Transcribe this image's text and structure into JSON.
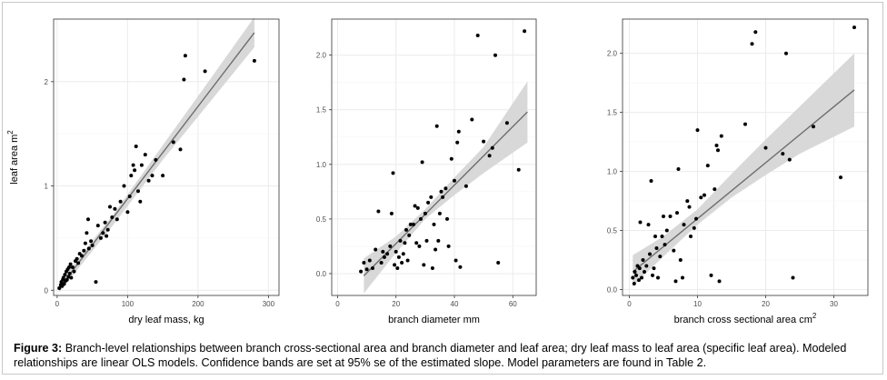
{
  "caption": {
    "label": "Figure 3:",
    "text": "Branch-level relationships between branch cross-sectional area and branch diameter and leaf area; dry leaf mass to leaf area (specific leaf area). Modeled relationships are linear OLS models. Confidence bands are set at 95% se of the estimated slope. Model parameters are found in Table 2."
  },
  "colors": {
    "points": "#000000",
    "fit_line": "#6e6e6e",
    "confidence_band": "#d6d6d6",
    "gridline": "#ebebeb",
    "panel_border": "#333333"
  },
  "chart_data": [
    {
      "type": "scatter",
      "title": "",
      "xlabel": "dry leaf mass, kg",
      "ylabel": "leaf area m",
      "ylabel_superscript": "2",
      "xlim": [
        -5,
        315
      ],
      "ylim": [
        -0.05,
        2.6
      ],
      "xticks": [
        0,
        100,
        200,
        300
      ],
      "yticks": [
        0,
        1,
        2
      ],
      "grid": true,
      "fit": {
        "method": "linear OLS",
        "x": [
          3,
          280
        ],
        "y": [
          0.02,
          2.47
        ]
      },
      "band": {
        "x": [
          3,
          80,
          150,
          220,
          280
        ],
        "lower": [
          -0.02,
          0.63,
          1.25,
          1.83,
          2.33
        ],
        "upper": [
          0.07,
          0.73,
          1.39,
          2.05,
          2.62
        ]
      },
      "points": [
        [
          3,
          0.02
        ],
        [
          5,
          0.05
        ],
        [
          6,
          0.08
        ],
        [
          7,
          0.04
        ],
        [
          8,
          0.1
        ],
        [
          9,
          0.12
        ],
        [
          10,
          0.06
        ],
        [
          11,
          0.15
        ],
        [
          12,
          0.09
        ],
        [
          13,
          0.18
        ],
        [
          14,
          0.1
        ],
        [
          15,
          0.2
        ],
        [
          16,
          0.13
        ],
        [
          17,
          0.22
        ],
        [
          18,
          0.16
        ],
        [
          19,
          0.25
        ],
        [
          20,
          0.12
        ],
        [
          22,
          0.22
        ],
        [
          24,
          0.18
        ],
        [
          26,
          0.28
        ],
        [
          28,
          0.3
        ],
        [
          30,
          0.26
        ],
        [
          32,
          0.35
        ],
        [
          35,
          0.33
        ],
        [
          38,
          0.38
        ],
        [
          40,
          0.45
        ],
        [
          42,
          0.55
        ],
        [
          44,
          0.68
        ],
        [
          45,
          0.4
        ],
        [
          48,
          0.47
        ],
        [
          50,
          0.43
        ],
        [
          55,
          0.08
        ],
        [
          58,
          0.62
        ],
        [
          62,
          0.5
        ],
        [
          65,
          0.55
        ],
        [
          68,
          0.65
        ],
        [
          70,
          0.52
        ],
        [
          72,
          0.58
        ],
        [
          75,
          0.8
        ],
        [
          78,
          0.7
        ],
        [
          82,
          0.78
        ],
        [
          85,
          0.68
        ],
        [
          90,
          0.85
        ],
        [
          95,
          1.0
        ],
        [
          100,
          0.75
        ],
        [
          103,
          0.9
        ],
        [
          105,
          1.1
        ],
        [
          108,
          1.2
        ],
        [
          110,
          1.15
        ],
        [
          112,
          1.38
        ],
        [
          115,
          0.95
        ],
        [
          118,
          0.85
        ],
        [
          120,
          1.2
        ],
        [
          125,
          1.3
        ],
        [
          130,
          1.05
        ],
        [
          135,
          1.1
        ],
        [
          140,
          1.25
        ],
        [
          150,
          1.1
        ],
        [
          165,
          1.42
        ],
        [
          175,
          1.35
        ],
        [
          180,
          2.02
        ],
        [
          182,
          2.25
        ],
        [
          210,
          2.1
        ],
        [
          280,
          2.2
        ]
      ]
    },
    {
      "type": "scatter",
      "title": "",
      "xlabel": "branch diameter mm",
      "ylabel": "",
      "xlim": [
        -2,
        68
      ],
      "ylim": [
        -0.2,
        2.33
      ],
      "xticks": [
        0,
        20,
        40,
        60
      ],
      "yticks": [
        0.0,
        0.5,
        1.0,
        1.5,
        2.0
      ],
      "grid": true,
      "fit": {
        "method": "linear OLS",
        "x": [
          9,
          65
        ],
        "y": [
          -0.02,
          1.48
        ]
      },
      "band": {
        "x": [
          9,
          20,
          30,
          40,
          50,
          65
        ],
        "lower": [
          -0.18,
          0.19,
          0.5,
          0.72,
          0.92,
          1.2
        ],
        "upper": [
          0.14,
          0.34,
          0.59,
          0.88,
          1.16,
          1.76
        ]
      },
      "points": [
        [
          8,
          0.02
        ],
        [
          9,
          0.1
        ],
        [
          10,
          0.04
        ],
        [
          11,
          0.12
        ],
        [
          12,
          0.05
        ],
        [
          13,
          0.22
        ],
        [
          14,
          0.57
        ],
        [
          15,
          0.1
        ],
        [
          15.5,
          0.2
        ],
        [
          16,
          0.15
        ],
        [
          17,
          0.18
        ],
        [
          18,
          0.25
        ],
        [
          18.5,
          0.55
        ],
        [
          19,
          0.92
        ],
        [
          19.5,
          0.08
        ],
        [
          20,
          0.2
        ],
        [
          20.5,
          0.05
        ],
        [
          21,
          0.15
        ],
        [
          21.5,
          0.3
        ],
        [
          22,
          0.1
        ],
        [
          22.5,
          0.18
        ],
        [
          23,
          0.28
        ],
        [
          23.5,
          0.4
        ],
        [
          24,
          0.12
        ],
        [
          24.5,
          0.35
        ],
        [
          25,
          0.45
        ],
        [
          26,
          0.45
        ],
        [
          26.5,
          0.62
        ],
        [
          27,
          0.28
        ],
        [
          27.5,
          0.6
        ],
        [
          28,
          0.25
        ],
        [
          28.5,
          0.5
        ],
        [
          29,
          1.02
        ],
        [
          29.5,
          0.08
        ],
        [
          30,
          0.55
        ],
        [
          30.5,
          0.3
        ],
        [
          31,
          0.65
        ],
        [
          32,
          0.7
        ],
        [
          32.5,
          0.05
        ],
        [
          33,
          0.45
        ],
        [
          33.5,
          0.22
        ],
        [
          34,
          1.35
        ],
        [
          34.5,
          0.3
        ],
        [
          35,
          0.55
        ],
        [
          35.5,
          0.75
        ],
        [
          36,
          0.7
        ],
        [
          37,
          0.78
        ],
        [
          37.5,
          0.5
        ],
        [
          38,
          0.25
        ],
        [
          39,
          1.05
        ],
        [
          40,
          0.85
        ],
        [
          40.5,
          0.12
        ],
        [
          41,
          1.2
        ],
        [
          41.5,
          1.3
        ],
        [
          42,
          0.06
        ],
        [
          44,
          0.8
        ],
        [
          46,
          1.41
        ],
        [
          48,
          2.18
        ],
        [
          50,
          1.21
        ],
        [
          52,
          1.08
        ],
        [
          53,
          1.15
        ],
        [
          54,
          2.0
        ],
        [
          55,
          0.1
        ],
        [
          58,
          1.38
        ],
        [
          62,
          0.95
        ],
        [
          64,
          2.22
        ]
      ]
    },
    {
      "type": "scatter",
      "title": "",
      "xlabel": "branch cross sectional area cm",
      "xlabel_superscript": "2",
      "ylabel": "",
      "xlim": [
        -1,
        35
      ],
      "ylim": [
        -0.05,
        2.29
      ],
      "xticks": [
        0,
        10,
        20,
        30
      ],
      "yticks": [
        0.0,
        0.5,
        1.0,
        1.5,
        2.0
      ],
      "grid": true,
      "fit": {
        "method": "linear OLS",
        "x": [
          0.5,
          33
        ],
        "y": [
          0.15,
          1.69
        ]
      },
      "band": {
        "x": [
          0.5,
          5,
          10,
          15,
          20,
          25,
          33
        ],
        "lower": [
          0.03,
          0.28,
          0.55,
          0.78,
          0.97,
          1.15,
          1.38
        ],
        "upper": [
          0.29,
          0.45,
          0.68,
          0.98,
          1.27,
          1.55,
          2.0
        ]
      },
      "points": [
        [
          0.5,
          0.1
        ],
        [
          0.7,
          0.05
        ],
        [
          0.8,
          0.15
        ],
        [
          1,
          0.12
        ],
        [
          1.2,
          0.2
        ],
        [
          1.4,
          0.08
        ],
        [
          1.5,
          0.18
        ],
        [
          1.6,
          0.57
        ],
        [
          1.8,
          0.1
        ],
        [
          2,
          0.25
        ],
        [
          2.2,
          0.15
        ],
        [
          2.5,
          0.2
        ],
        [
          2.8,
          0.55
        ],
        [
          3,
          0.3
        ],
        [
          3.2,
          0.92
        ],
        [
          3.4,
          0.12
        ],
        [
          3.6,
          0.18
        ],
        [
          3.8,
          0.45
        ],
        [
          4,
          0.35
        ],
        [
          4.2,
          0.1
        ],
        [
          4.5,
          0.28
        ],
        [
          4.8,
          0.45
        ],
        [
          5,
          0.62
        ],
        [
          5.2,
          0.38
        ],
        [
          5.5,
          0.5
        ],
        [
          6,
          0.62
        ],
        [
          6.5,
          0.33
        ],
        [
          6.8,
          0.07
        ],
        [
          7,
          0.65
        ],
        [
          7.2,
          1.02
        ],
        [
          7.5,
          0.25
        ],
        [
          7.8,
          0.1
        ],
        [
          8,
          0.55
        ],
        [
          8.5,
          0.75
        ],
        [
          8.8,
          0.7
        ],
        [
          9,
          0.45
        ],
        [
          9.5,
          0.52
        ],
        [
          9.8,
          0.6
        ],
        [
          10,
          1.35
        ],
        [
          10.5,
          0.78
        ],
        [
          11,
          0.8
        ],
        [
          11.5,
          1.05
        ],
        [
          12,
          0.12
        ],
        [
          12.5,
          0.85
        ],
        [
          12.8,
          1.22
        ],
        [
          13,
          1.18
        ],
        [
          13.2,
          0.07
        ],
        [
          13.5,
          1.3
        ],
        [
          17,
          1.4
        ],
        [
          18,
          2.08
        ],
        [
          18.5,
          2.18
        ],
        [
          20,
          1.2
        ],
        [
          22.5,
          1.15
        ],
        [
          23,
          2.0
        ],
        [
          23.5,
          1.1
        ],
        [
          24,
          0.1
        ],
        [
          27,
          1.38
        ],
        [
          31,
          0.95
        ],
        [
          33,
          2.22
        ]
      ]
    }
  ]
}
